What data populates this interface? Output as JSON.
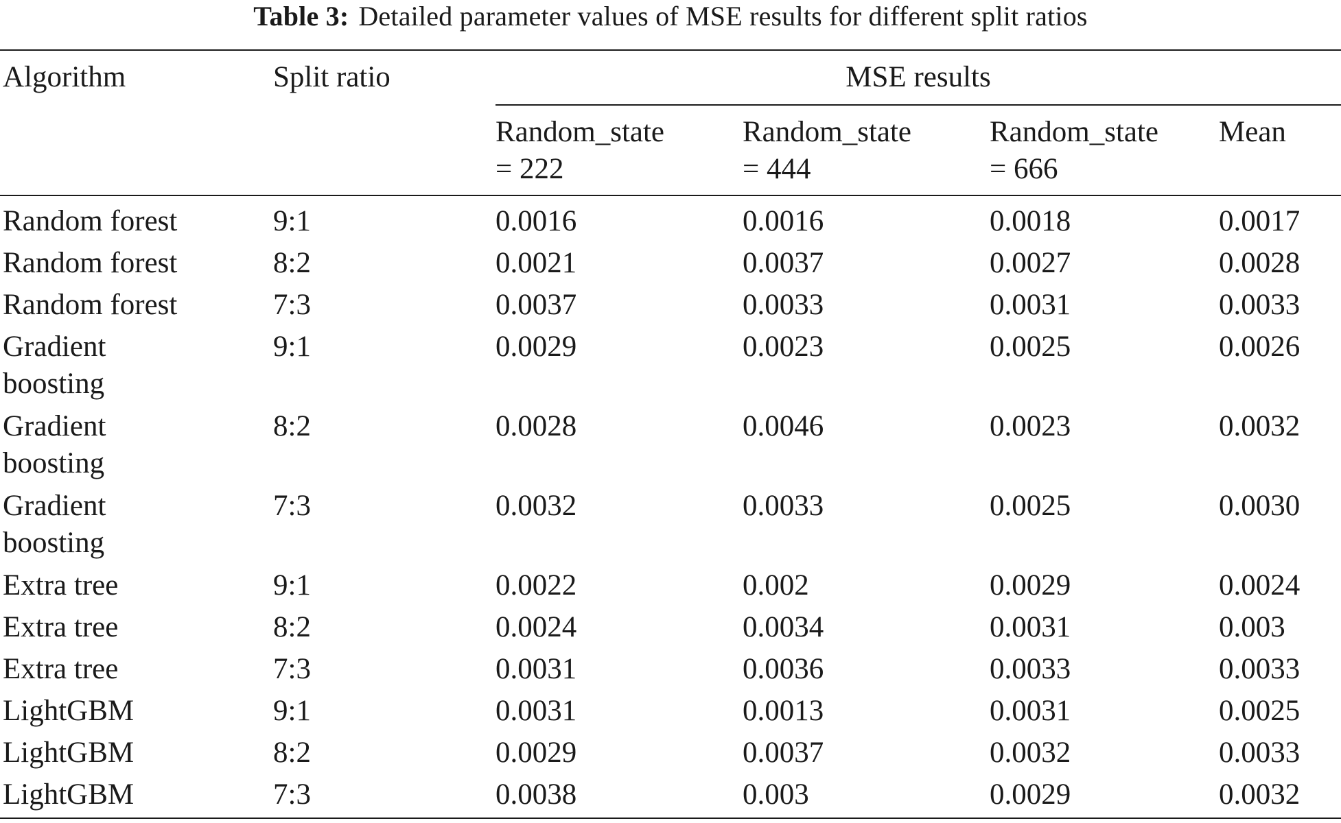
{
  "caption": {
    "label": "Table 3:",
    "text": "Detailed parameter values of MSE results for different split ratios"
  },
  "header": {
    "algorithm": "Algorithm",
    "split_ratio": "Split ratio",
    "mse_group": "MSE results",
    "rs222_line1": "Random_state",
    "rs222_line2": "= 222",
    "rs444_line1": "Random_state",
    "rs444_line2": "= 444",
    "rs666_line1": "Random_state",
    "rs666_line2": "= 666",
    "mean": "Mean"
  },
  "rows": [
    {
      "algorithm": "Random forest",
      "split": "9:1",
      "rs222": "0.0016",
      "rs444": "0.0016",
      "rs666": "0.0018",
      "mean": "0.0017"
    },
    {
      "algorithm": "Random forest",
      "split": "8:2",
      "rs222": "0.0021",
      "rs444": "0.0037",
      "rs666": "0.0027",
      "mean": "0.0028"
    },
    {
      "algorithm": "Random forest",
      "split": "7:3",
      "rs222": "0.0037",
      "rs444": "0.0033",
      "rs666": "0.0031",
      "mean": "0.0033"
    },
    {
      "algorithm": "Gradient boosting",
      "split": "9:1",
      "rs222": "0.0029",
      "rs444": "0.0023",
      "rs666": "0.0025",
      "mean": "0.0026"
    },
    {
      "algorithm": "Gradient boosting",
      "split": "8:2",
      "rs222": "0.0028",
      "rs444": "0.0046",
      "rs666": "0.0023",
      "mean": "0.0032"
    },
    {
      "algorithm": "Gradient boosting",
      "split": "7:3",
      "rs222": "0.0032",
      "rs444": "0.0033",
      "rs666": "0.0025",
      "mean": "0.0030"
    },
    {
      "algorithm": "Extra tree",
      "split": "9:1",
      "rs222": "0.0022",
      "rs444": "0.002",
      "rs666": "0.0029",
      "mean": "0.0024"
    },
    {
      "algorithm": "Extra tree",
      "split": "8:2",
      "rs222": "0.0024",
      "rs444": "0.0034",
      "rs666": "0.0031",
      "mean": "0.003"
    },
    {
      "algorithm": "Extra tree",
      "split": "7:3",
      "rs222": "0.0031",
      "rs444": "0.0036",
      "rs666": "0.0033",
      "mean": "0.0033"
    },
    {
      "algorithm": "LightGBM",
      "split": "9:1",
      "rs222": "0.0031",
      "rs444": "0.0013",
      "rs666": "0.0031",
      "mean": "0.0025"
    },
    {
      "algorithm": "LightGBM",
      "split": "8:2",
      "rs222": "0.0029",
      "rs444": "0.0037",
      "rs666": "0.0032",
      "mean": "0.0033"
    },
    {
      "algorithm": "LightGBM",
      "split": "7:3",
      "rs222": "0.0038",
      "rs444": "0.003",
      "rs666": "0.0029",
      "mean": "0.0032"
    }
  ]
}
